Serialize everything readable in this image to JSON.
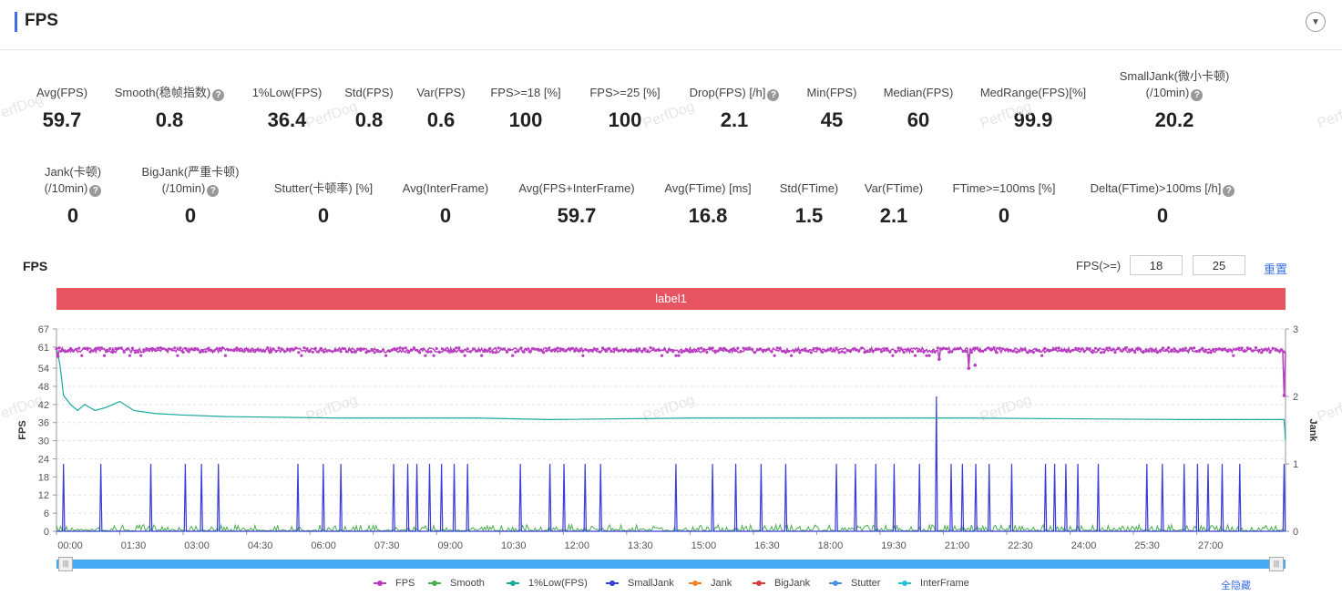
{
  "header": {
    "title": "FPS",
    "collapse_icon": "chevron-down-icon"
  },
  "stats_row1": [
    {
      "label": "Avg(FPS)",
      "value": "59.7",
      "help": false
    },
    {
      "label": "Smooth(稳帧指数)",
      "value": "0.8",
      "help": true
    },
    {
      "label": "1%Low(FPS)",
      "value": "36.4",
      "help": false
    },
    {
      "label": "Std(FPS)",
      "value": "0.8",
      "help": false
    },
    {
      "label": "Var(FPS)",
      "value": "0.6",
      "help": false
    },
    {
      "label": "FPS>=18 [%]",
      "value": "100",
      "help": false
    },
    {
      "label": "FPS>=25 [%]",
      "value": "100",
      "help": false
    },
    {
      "label": "Drop(FPS) [/h]",
      "value": "2.1",
      "help": true
    },
    {
      "label": "Min(FPS)",
      "value": "45",
      "help": false
    },
    {
      "label": "Median(FPS)",
      "value": "60",
      "help": false
    },
    {
      "label": "MedRange(FPS)[%]",
      "value": "99.9",
      "help": false
    },
    {
      "label": "SmallJank(微小卡顿)",
      "label2": "(/10min)",
      "value": "20.2",
      "help": true
    }
  ],
  "stats_row2": [
    {
      "label": "Jank(卡顿)",
      "label2": "(/10min)",
      "value": "0",
      "help": true
    },
    {
      "label": "BigJank(严重卡顿)",
      "label2": "(/10min)",
      "value": "0",
      "help": true
    },
    {
      "label": "Stutter(卡顿率) [%]",
      "value": "0",
      "help": false
    },
    {
      "label": "Avg(InterFrame)",
      "value": "0",
      "help": false
    },
    {
      "label": "Avg(FPS+InterFrame)",
      "value": "59.7",
      "help": false
    },
    {
      "label": "Avg(FTime) [ms]",
      "value": "16.8",
      "help": false
    },
    {
      "label": "Std(FTime)",
      "value": "1.5",
      "help": false
    },
    {
      "label": "Var(FTime)",
      "value": "2.1",
      "help": false
    },
    {
      "label": "FTime>=100ms [%]",
      "value": "0",
      "help": false
    },
    {
      "label": "Delta(FTime)>100ms [/h]",
      "value": "0",
      "help": true
    }
  ],
  "help_glyph": "?",
  "watermark": "PerfDog",
  "chart_section": {
    "title": "FPS",
    "fps_threshold_label": "FPS(>=)",
    "fps_threshold_1": "18",
    "fps_threshold_2": "25",
    "reset_label": "重置",
    "label_bar": "label1",
    "hide_all_label": "全隐藏"
  },
  "chart_data": {
    "type": "line",
    "ylabel": "FPS",
    "y2label": "Jank",
    "ylim": [
      0,
      67
    ],
    "yticks": [
      0,
      6,
      12,
      18,
      24,
      30,
      36,
      42,
      48,
      54,
      61,
      67
    ],
    "y2lim": [
      0,
      3
    ],
    "y2ticks": [
      0,
      1,
      2,
      3
    ],
    "xlim_seconds": [
      0,
      1746
    ],
    "xticks": [
      "00:00",
      "01:30",
      "03:00",
      "04:30",
      "06:00",
      "07:30",
      "09:00",
      "10:30",
      "12:00",
      "13:30",
      "15:00",
      "16:30",
      "18:00",
      "19:30",
      "21:00",
      "22:30",
      "24:00",
      "25:30",
      "27:00"
    ],
    "grid": "horizontal-dashed",
    "legend_position": "bottom",
    "series": [
      {
        "name": "FPS",
        "color": "#b83fc0",
        "typical": 60,
        "dips": [
          {
            "t": 2,
            "v": 58
          },
          {
            "t": 1254,
            "v": 57
          },
          {
            "t": 1296,
            "v": 54
          },
          {
            "t": 1305,
            "v": 55
          },
          {
            "t": 1744,
            "v": 45
          }
        ]
      },
      {
        "name": "Smooth",
        "color": "#4caf50",
        "typical": 0.8
      },
      {
        "name": "1%Low(FPS)",
        "color": "#1aa89c",
        "points": [
          [
            0,
            61
          ],
          [
            5,
            55
          ],
          [
            10,
            45
          ],
          [
            20,
            42
          ],
          [
            30,
            40
          ],
          [
            40,
            42
          ],
          [
            55,
            40
          ],
          [
            70,
            41
          ],
          [
            90,
            43
          ],
          [
            110,
            40
          ],
          [
            140,
            39
          ],
          [
            180,
            38.5
          ],
          [
            240,
            38
          ],
          [
            400,
            37.5
          ],
          [
            600,
            37.5
          ],
          [
            700,
            37
          ],
          [
            900,
            37.5
          ],
          [
            1100,
            37.5
          ],
          [
            1300,
            37.5
          ],
          [
            1600,
            37
          ],
          [
            1744,
            37
          ],
          [
            1746,
            30
          ]
        ]
      },
      {
        "name": "SmallJank",
        "color": "#3b3bd6",
        "spikes_seconds": [
          10,
          63,
          134,
          183,
          206,
          230,
          343,
          379,
          404,
          479,
          499,
          512,
          530,
          547,
          565,
          584,
          659,
          701,
          721,
          751,
          773,
          880,
          932,
          965,
          1001,
          1036,
          1108,
          1135,
          1164,
          1190,
          1226,
          1271,
          1287,
          1306,
          1325,
          1357,
          1405,
          1418,
          1434,
          1451,
          1480,
          1549,
          1571,
          1602,
          1621,
          1636,
          1656,
          1681,
          1744
        ],
        "spike_value": 1,
        "big_spike": {
          "t": 1250,
          "v": 2
        }
      },
      {
        "name": "Jank",
        "color": "#f0822a",
        "typical": 0
      },
      {
        "name": "BigJank",
        "color": "#d93c3c",
        "typical": 0
      },
      {
        "name": "Stutter",
        "color": "#4a90e2",
        "typical": 0
      },
      {
        "name": "InterFrame",
        "color": "#29c5d6",
        "typical": 0
      }
    ]
  }
}
